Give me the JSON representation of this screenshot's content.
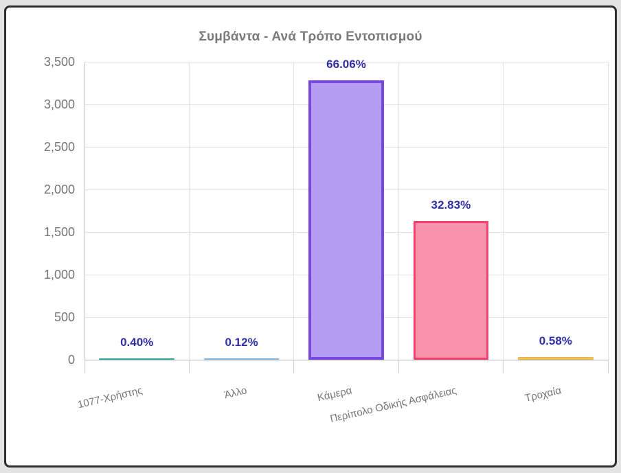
{
  "page": {
    "background_color": "#e3e3e3",
    "frame_border_color": "#2d2d2d",
    "frame_background": "#ffffff"
  },
  "chart_data": {
    "type": "bar",
    "title": "Συμβάντα - Ανά Τρόπο Εντοπισμού",
    "title_color": "#7a7a7a",
    "categories": [
      "1077-Χρήστης",
      "Άλλο",
      "Κάμερα",
      "Περίπολο Οδικής Ασφάλειας",
      "Τροχαία"
    ],
    "values": [
      20,
      6,
      3283,
      1632,
      29
    ],
    "percent_labels": [
      "0.40%",
      "0.12%",
      "66.06%",
      "32.83%",
      "0.58%"
    ],
    "bar_styles": [
      {
        "fill": "#4dbcb0",
        "border": "#35a99a",
        "border_width": 2
      },
      {
        "fill": "#a9d3f5",
        "border": "#7db8ea",
        "border_width": 1
      },
      {
        "fill": "#b79df2",
        "border": "#7a46e0",
        "border_width": 4
      },
      {
        "fill": "#f893ab",
        "border": "#f4416d",
        "border_width": 3
      },
      {
        "fill": "#f2c55c",
        "border": "#e8b542",
        "border_width": 2
      }
    ],
    "xlabel": "",
    "ylabel": "",
    "ylim": [
      0,
      3500
    ],
    "ytick_step": 500,
    "ytick_labels": [
      "0",
      "500",
      "1,000",
      "1,500",
      "2,000",
      "2,500",
      "3,000",
      "3,500"
    ],
    "grid": true,
    "legend": false,
    "value_label_color": "#2f2fa8",
    "axis_text_color": "#757575"
  }
}
